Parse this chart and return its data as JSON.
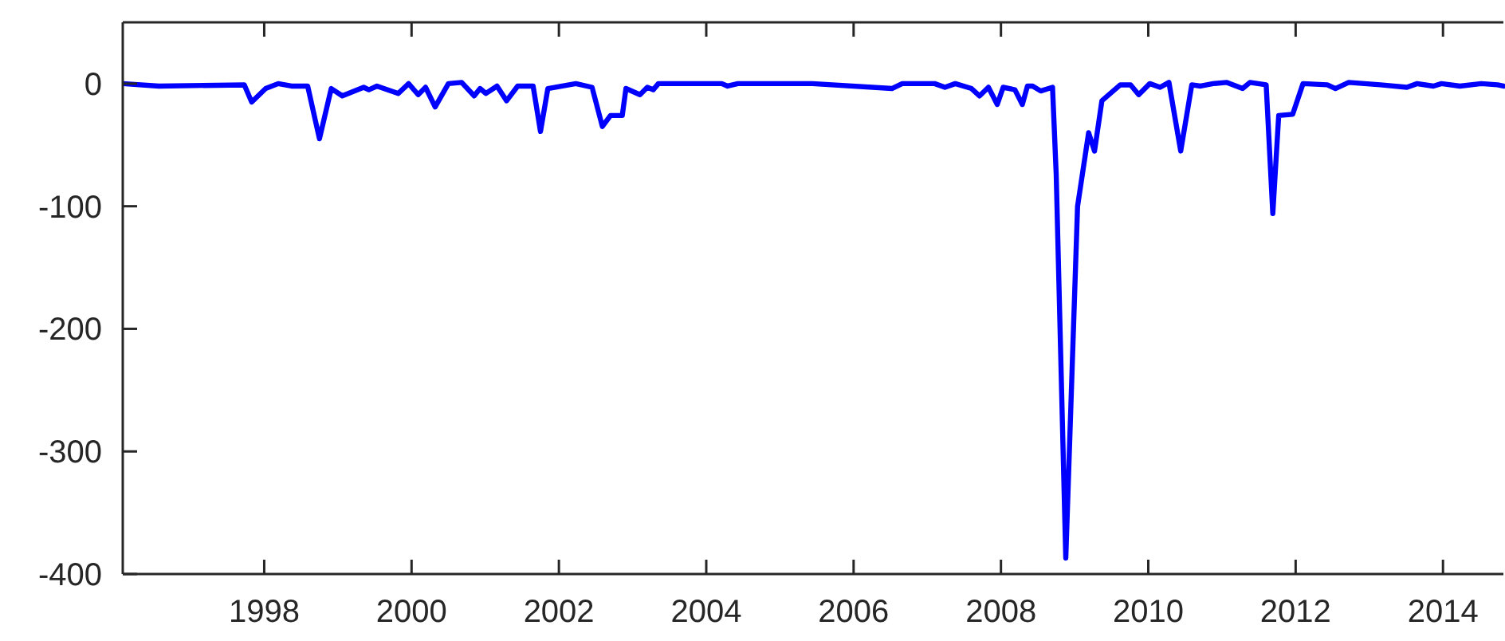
{
  "chart_data": {
    "type": "line",
    "xlim": [
      1996.08,
      2014.82
    ],
    "xticks": [
      1998,
      2000,
      2002,
      2004,
      2006,
      2008,
      2010,
      2012,
      2014
    ],
    "ylim": [
      -400,
      50
    ],
    "yticks": [
      -400,
      -300,
      -200,
      -100,
      0
    ],
    "grid": false,
    "line_style": "solid",
    "x": [
      1996.08,
      1996.57,
      1997.73,
      1997.83,
      1998.02,
      1998.19,
      1998.37,
      1998.59,
      1998.75,
      1998.91,
      1999.06,
      1999.35,
      1999.42,
      1999.53,
      1999.82,
      1999.96,
      2000.09,
      2000.19,
      2000.32,
      2000.5,
      2000.68,
      2000.85,
      2000.93,
      2001.01,
      2001.16,
      2001.29,
      2001.44,
      2001.65,
      2001.75,
      2001.85,
      2002.23,
      2002.45,
      2002.59,
      2002.7,
      2002.86,
      2002.91,
      2003.1,
      2003.2,
      2003.28,
      2003.35,
      2004.21,
      2004.29,
      2004.43,
      2005.44,
      2006.52,
      2006.66,
      2007.1,
      2007.24,
      2007.38,
      2007.6,
      2007.71,
      2007.83,
      2007.95,
      2008.03,
      2008.19,
      2008.29,
      2008.36,
      2008.43,
      2008.54,
      2008.7,
      2008.75,
      2008.88,
      2009.04,
      2009.19,
      2009.27,
      2009.37,
      2009.62,
      2009.76,
      2009.87,
      2010.02,
      2010.16,
      2010.28,
      2010.44,
      2010.59,
      2010.71,
      2010.88,
      2011.06,
      2011.28,
      2011.38,
      2011.6,
      2011.69,
      2011.77,
      2011.96,
      2012.1,
      2012.43,
      2012.54,
      2012.72,
      2013.15,
      2013.51,
      2013.65,
      2013.87,
      2013.98,
      2014.23,
      2014.52,
      2014.74,
      2014.82
    ],
    "series": [
      {
        "color": "#0000ff",
        "values": [
          0,
          -2,
          -1,
          -15,
          -4,
          0,
          -2,
          -2,
          -45,
          -4,
          -10,
          -3,
          -5,
          -2,
          -8,
          0,
          -9,
          -3,
          -19,
          0,
          1,
          -10,
          -4,
          -8,
          -2,
          -14,
          -2,
          -2,
          -39,
          -4,
          0,
          -3,
          -35,
          -26,
          -26,
          -4,
          -9,
          -3,
          -5,
          0,
          0,
          -2,
          0,
          0,
          -4,
          0,
          0,
          -3,
          0,
          -4,
          -10,
          -3,
          -17,
          -3,
          -5,
          -17,
          -2,
          -2,
          -6,
          -3,
          -74,
          -387,
          -100,
          -40,
          -55,
          -14,
          -1,
          -1,
          -9,
          0,
          -3,
          1,
          -55,
          -1,
          -2,
          0,
          1,
          -4,
          1,
          -1,
          -106,
          -26,
          -25,
          0,
          -1,
          -4,
          1,
          -1,
          -3,
          0,
          -2,
          0,
          -2,
          0,
          -1,
          -2
        ]
      }
    ]
  }
}
